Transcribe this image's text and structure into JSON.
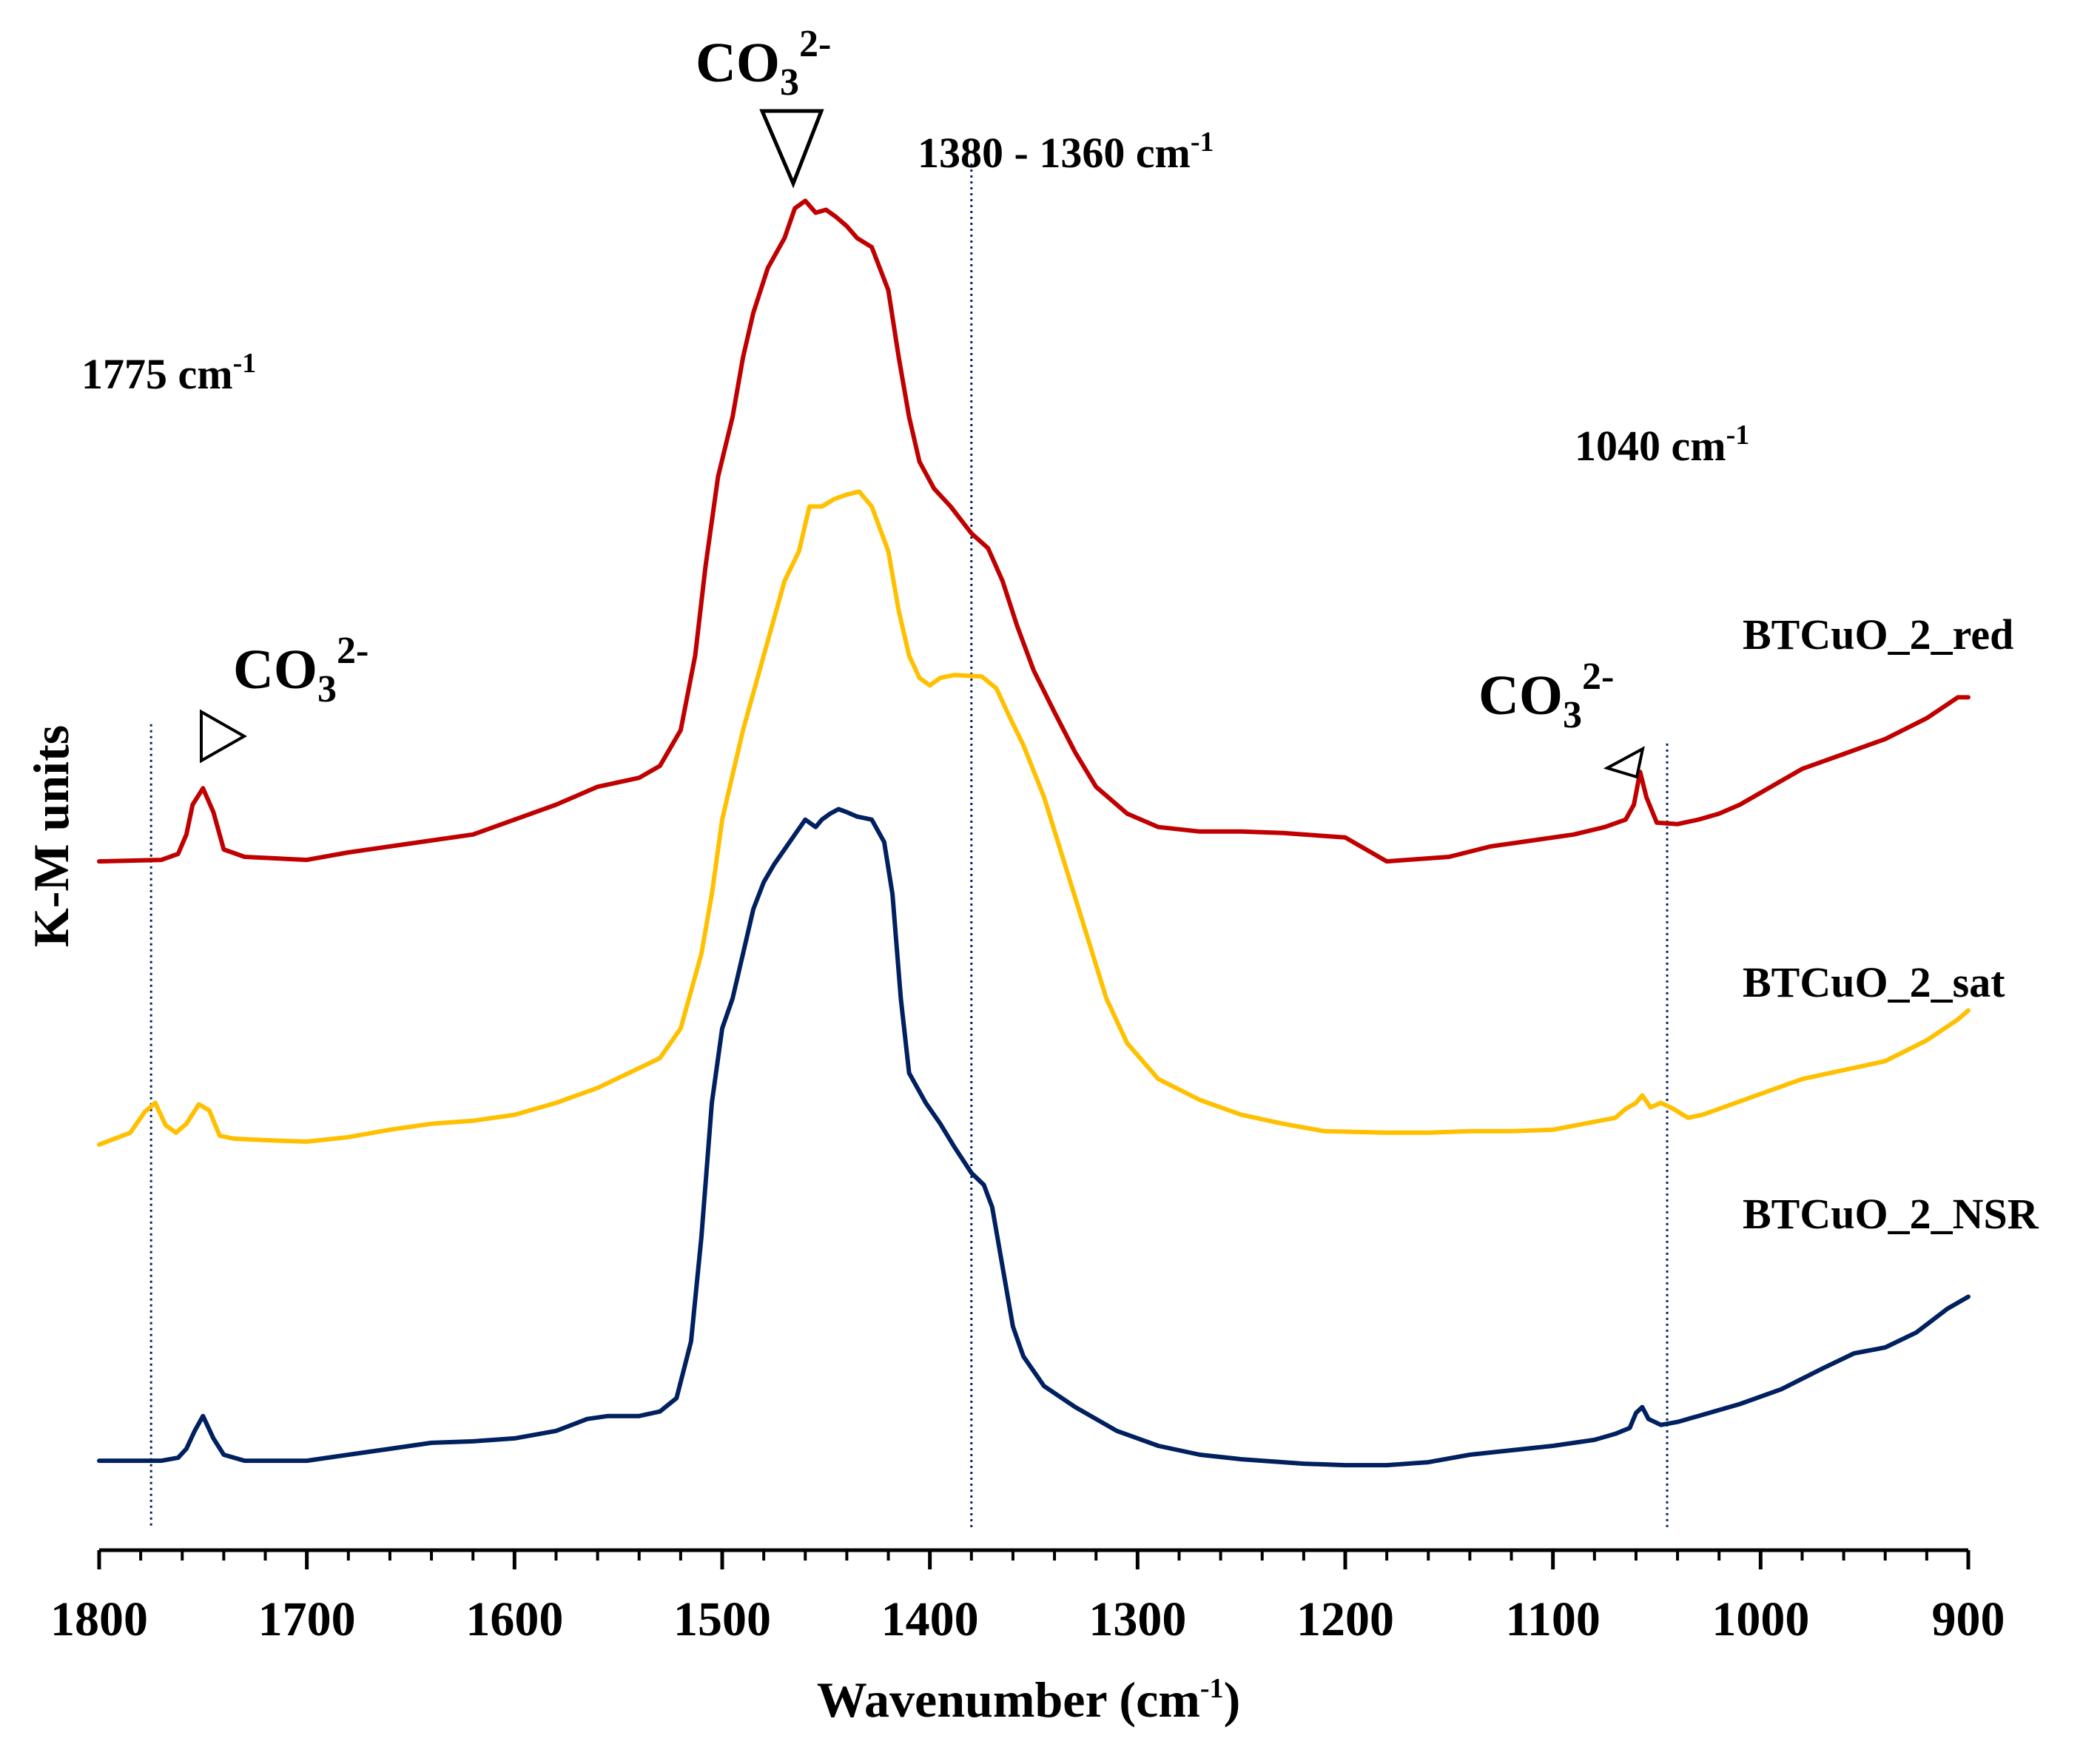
{
  "chart_data": {
    "type": "line",
    "title": "",
    "xlabel": "Wavenumber (cm",
    "xlabel_sup": "-1",
    "xlabel_close": ")",
    "ylabel": "K-M units",
    "xlim": [
      1800,
      900
    ],
    "ylim": [
      0,
      1
    ],
    "grid": false,
    "x_ticks": [
      1800,
      1700,
      1600,
      1500,
      1400,
      1300,
      1200,
      1100,
      1000,
      900
    ],
    "x_tick_labels": [
      "1800",
      "1700",
      "1600",
      "1500",
      "1400",
      "1300",
      "1200",
      "1100",
      "1000",
      "900"
    ],
    "series": [
      {
        "name": "BTCuO_2_red",
        "color": "#c00000",
        "points": [
          [
            1800,
            0.462
          ],
          [
            1770,
            0.463
          ],
          [
            1762,
            0.467
          ],
          [
            1758,
            0.48
          ],
          [
            1755,
            0.5
          ],
          [
            1750,
            0.511
          ],
          [
            1745,
            0.495
          ],
          [
            1740,
            0.47
          ],
          [
            1730,
            0.465
          ],
          [
            1700,
            0.463
          ],
          [
            1680,
            0.468
          ],
          [
            1650,
            0.474
          ],
          [
            1620,
            0.48
          ],
          [
            1600,
            0.49
          ],
          [
            1580,
            0.5
          ],
          [
            1560,
            0.512
          ],
          [
            1540,
            0.518
          ],
          [
            1530,
            0.526
          ],
          [
            1520,
            0.55
          ],
          [
            1513,
            0.6
          ],
          [
            1508,
            0.66
          ],
          [
            1502,
            0.72
          ],
          [
            1495,
            0.76
          ],
          [
            1490,
            0.8
          ],
          [
            1485,
            0.83
          ],
          [
            1478,
            0.86
          ],
          [
            1470,
            0.88
          ],
          [
            1465,
            0.9
          ],
          [
            1460,
            0.905
          ],
          [
            1455,
            0.897
          ],
          [
            1450,
            0.899
          ],
          [
            1445,
            0.894
          ],
          [
            1440,
            0.888
          ],
          [
            1435,
            0.88
          ],
          [
            1428,
            0.874
          ],
          [
            1420,
            0.845
          ],
          [
            1415,
            0.8
          ],
          [
            1410,
            0.76
          ],
          [
            1405,
            0.73
          ],
          [
            1398,
            0.712
          ],
          [
            1390,
            0.7
          ],
          [
            1380,
            0.682
          ],
          [
            1372,
            0.672
          ],
          [
            1365,
            0.65
          ],
          [
            1358,
            0.62
          ],
          [
            1350,
            0.59
          ],
          [
            1340,
            0.562
          ],
          [
            1330,
            0.535
          ],
          [
            1320,
            0.512
          ],
          [
            1305,
            0.494
          ],
          [
            1290,
            0.485
          ],
          [
            1270,
            0.482
          ],
          [
            1250,
            0.482
          ],
          [
            1230,
            0.481
          ],
          [
            1200,
            0.478
          ],
          [
            1180,
            0.462
          ],
          [
            1150,
            0.465
          ],
          [
            1130,
            0.472
          ],
          [
            1110,
            0.476
          ],
          [
            1090,
            0.48
          ],
          [
            1075,
            0.485
          ],
          [
            1065,
            0.49
          ],
          [
            1061,
            0.5
          ],
          [
            1058,
            0.522
          ],
          [
            1055,
            0.505
          ],
          [
            1050,
            0.488
          ],
          [
            1040,
            0.487
          ],
          [
            1030,
            0.49
          ],
          [
            1020,
            0.494
          ],
          [
            1010,
            0.5
          ],
          [
            1000,
            0.508
          ],
          [
            980,
            0.524
          ],
          [
            960,
            0.534
          ],
          [
            940,
            0.544
          ],
          [
            920,
            0.558
          ],
          [
            905,
            0.572
          ],
          [
            900,
            0.572
          ]
        ]
      },
      {
        "name": "BTCuO_2_sat",
        "color": "#ffc000",
        "points": [
          [
            1800,
            0.272
          ],
          [
            1785,
            0.28
          ],
          [
            1778,
            0.294
          ],
          [
            1773,
            0.3
          ],
          [
            1768,
            0.285
          ],
          [
            1763,
            0.28
          ],
          [
            1758,
            0.286
          ],
          [
            1752,
            0.299
          ],
          [
            1747,
            0.295
          ],
          [
            1742,
            0.278
          ],
          [
            1735,
            0.276
          ],
          [
            1720,
            0.275
          ],
          [
            1700,
            0.274
          ],
          [
            1680,
            0.277
          ],
          [
            1660,
            0.282
          ],
          [
            1640,
            0.286
          ],
          [
            1620,
            0.288
          ],
          [
            1600,
            0.292
          ],
          [
            1580,
            0.3
          ],
          [
            1560,
            0.31
          ],
          [
            1545,
            0.32
          ],
          [
            1530,
            0.33
          ],
          [
            1520,
            0.35
          ],
          [
            1510,
            0.4
          ],
          [
            1505,
            0.44
          ],
          [
            1500,
            0.49
          ],
          [
            1495,
            0.52
          ],
          [
            1490,
            0.55
          ],
          [
            1480,
            0.6
          ],
          [
            1470,
            0.65
          ],
          [
            1463,
            0.67
          ],
          [
            1458,
            0.7
          ],
          [
            1452,
            0.7
          ],
          [
            1446,
            0.705
          ],
          [
            1440,
            0.708
          ],
          [
            1434,
            0.71
          ],
          [
            1428,
            0.7
          ],
          [
            1420,
            0.67
          ],
          [
            1415,
            0.63
          ],
          [
            1410,
            0.6
          ],
          [
            1405,
            0.585
          ],
          [
            1400,
            0.58
          ],
          [
            1395,
            0.585
          ],
          [
            1388,
            0.587
          ],
          [
            1375,
            0.586
          ],
          [
            1368,
            0.578
          ],
          [
            1362,
            0.56
          ],
          [
            1355,
            0.54
          ],
          [
            1345,
            0.505
          ],
          [
            1335,
            0.46
          ],
          [
            1325,
            0.415
          ],
          [
            1315,
            0.37
          ],
          [
            1305,
            0.34
          ],
          [
            1290,
            0.316
          ],
          [
            1270,
            0.302
          ],
          [
            1250,
            0.292
          ],
          [
            1230,
            0.286
          ],
          [
            1210,
            0.281
          ],
          [
            1180,
            0.28
          ],
          [
            1160,
            0.28
          ],
          [
            1140,
            0.281
          ],
          [
            1120,
            0.281
          ],
          [
            1100,
            0.282
          ],
          [
            1085,
            0.286
          ],
          [
            1070,
            0.29
          ],
          [
            1065,
            0.296
          ],
          [
            1060,
            0.3
          ],
          [
            1057,
            0.305
          ],
          [
            1053,
            0.297
          ],
          [
            1048,
            0.3
          ],
          [
            1042,
            0.296
          ],
          [
            1035,
            0.29
          ],
          [
            1028,
            0.292
          ],
          [
            1020,
            0.296
          ],
          [
            1000,
            0.306
          ],
          [
            980,
            0.316
          ],
          [
            960,
            0.322
          ],
          [
            940,
            0.328
          ],
          [
            920,
            0.342
          ],
          [
            905,
            0.356
          ],
          [
            900,
            0.362
          ]
        ]
      },
      {
        "name": "BTCuO_2_NSR",
        "color": "#002060",
        "points": [
          [
            1800,
            0.06
          ],
          [
            1770,
            0.06
          ],
          [
            1762,
            0.062
          ],
          [
            1758,
            0.068
          ],
          [
            1754,
            0.08
          ],
          [
            1750,
            0.09
          ],
          [
            1745,
            0.075
          ],
          [
            1740,
            0.064
          ],
          [
            1730,
            0.06
          ],
          [
            1700,
            0.06
          ],
          [
            1680,
            0.064
          ],
          [
            1660,
            0.068
          ],
          [
            1640,
            0.072
          ],
          [
            1620,
            0.073
          ],
          [
            1600,
            0.075
          ],
          [
            1580,
            0.08
          ],
          [
            1565,
            0.088
          ],
          [
            1555,
            0.09
          ],
          [
            1540,
            0.09
          ],
          [
            1530,
            0.093
          ],
          [
            1522,
            0.102
          ],
          [
            1515,
            0.14
          ],
          [
            1510,
            0.21
          ],
          [
            1505,
            0.3
          ],
          [
            1500,
            0.35
          ],
          [
            1495,
            0.37
          ],
          [
            1490,
            0.4
          ],
          [
            1485,
            0.43
          ],
          [
            1480,
            0.448
          ],
          [
            1475,
            0.46
          ],
          [
            1470,
            0.47
          ],
          [
            1465,
            0.48
          ],
          [
            1460,
            0.49
          ],
          [
            1455,
            0.485
          ],
          [
            1452,
            0.49
          ],
          [
            1448,
            0.494
          ],
          [
            1444,
            0.497
          ],
          [
            1440,
            0.495
          ],
          [
            1435,
            0.492
          ],
          [
            1428,
            0.49
          ],
          [
            1422,
            0.475
          ],
          [
            1418,
            0.44
          ],
          [
            1414,
            0.37
          ],
          [
            1410,
            0.32
          ],
          [
            1402,
            0.3
          ],
          [
            1395,
            0.286
          ],
          [
            1388,
            0.27
          ],
          [
            1380,
            0.253
          ],
          [
            1374,
            0.245
          ],
          [
            1370,
            0.23
          ],
          [
            1365,
            0.19
          ],
          [
            1360,
            0.15
          ],
          [
            1355,
            0.13
          ],
          [
            1345,
            0.11
          ],
          [
            1330,
            0.096
          ],
          [
            1310,
            0.08
          ],
          [
            1290,
            0.07
          ],
          [
            1270,
            0.064
          ],
          [
            1250,
            0.061
          ],
          [
            1220,
            0.058
          ],
          [
            1200,
            0.057
          ],
          [
            1180,
            0.057
          ],
          [
            1160,
            0.059
          ],
          [
            1140,
            0.064
          ],
          [
            1120,
            0.067
          ],
          [
            1100,
            0.07
          ],
          [
            1080,
            0.074
          ],
          [
            1070,
            0.078
          ],
          [
            1063,
            0.082
          ],
          [
            1060,
            0.092
          ],
          [
            1057,
            0.096
          ],
          [
            1054,
            0.088
          ],
          [
            1048,
            0.084
          ],
          [
            1040,
            0.086
          ],
          [
            1030,
            0.09
          ],
          [
            1010,
            0.098
          ],
          [
            990,
            0.108
          ],
          [
            970,
            0.122
          ],
          [
            955,
            0.132
          ],
          [
            940,
            0.136
          ],
          [
            925,
            0.146
          ],
          [
            910,
            0.162
          ],
          [
            900,
            0.17
          ]
        ]
      }
    ],
    "reference_lines": [
      {
        "x": 1775,
        "label": "1775 cm",
        "sup": "-1",
        "top": 0.554
      },
      {
        "x": 1380,
        "label": "1380 - 1360 cm",
        "sup": "-1",
        "top": 0.93
      },
      {
        "x": 1045,
        "label": "1040 cm",
        "sup": "-1",
        "top": 0.541
      }
    ],
    "annotations": [
      {
        "text": "CO",
        "sub": "3",
        "sup": "2-",
        "marker": "triangle-right",
        "x": 1750
      },
      {
        "text": "CO",
        "sub": "3",
        "sup": "2-",
        "marker": "triangle-down",
        "x": 1462
      },
      {
        "text": "CO",
        "sub": "3",
        "sup": "2-",
        "marker": "triangle-left",
        "x": 1058
      }
    ]
  }
}
